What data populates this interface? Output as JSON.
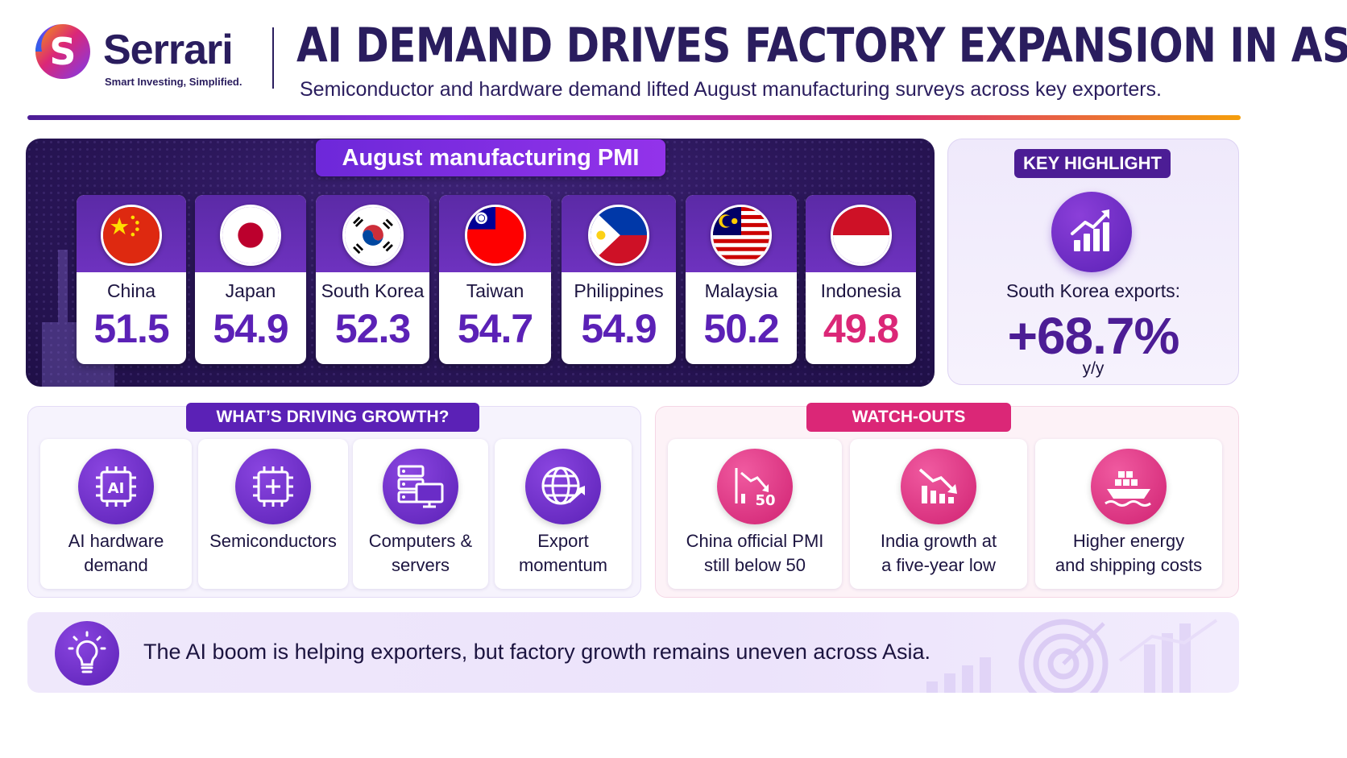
{
  "brand": {
    "name": "Serrari",
    "tagline": "Smart Investing, Simplified."
  },
  "header": {
    "title": "AI DEMAND DRIVES FACTORY EXPANSION IN ASIA",
    "subtitle": "Semiconductor and hardware demand lifted August manufacturing surveys across key exporters."
  },
  "pmi": {
    "title": "August manufacturing PMI",
    "countries": [
      {
        "name": "China",
        "value": "51.5",
        "flag": "china-flag-icon"
      },
      {
        "name": "Japan",
        "value": "54.9",
        "flag": "japan-flag-icon"
      },
      {
        "name": "South Korea",
        "value": "52.3",
        "flag": "south-korea-flag-icon"
      },
      {
        "name": "Taiwan",
        "value": "54.7",
        "flag": "taiwan-flag-icon"
      },
      {
        "name": "Philippines",
        "value": "54.9",
        "flag": "philippines-flag-icon"
      },
      {
        "name": "Malaysia",
        "value": "50.2",
        "flag": "malaysia-flag-icon"
      },
      {
        "name": "Indonesia",
        "value": "49.8",
        "flag": "indonesia-flag-icon"
      }
    ]
  },
  "highlight": {
    "badge": "KEY HIGHLIGHT",
    "label": "South Korea exports:",
    "value": "+68.7%",
    "unit": "y/y",
    "icon": "growth-chart-icon"
  },
  "growth": {
    "badge": "WHAT’S DRIVING GROWTH?",
    "items": [
      {
        "line1": "AI hardware",
        "line2": "demand",
        "icon": "ai-chip-icon"
      },
      {
        "line1": "Semiconductors",
        "line2": "",
        "icon": "chip-icon"
      },
      {
        "line1": "Computers &",
        "line2": "servers",
        "icon": "server-computer-icon"
      },
      {
        "line1": "Export",
        "line2": "momentum",
        "icon": "globe-arrow-icon"
      }
    ]
  },
  "watch": {
    "badge": "WATCH-OUTS",
    "items": [
      {
        "line1": "China official PMI",
        "line2": "still below 50",
        "icon": "declining-chart-50-icon",
        "icon_label": "50"
      },
      {
        "line1": "India growth at",
        "line2": "a five-year low",
        "icon": "declining-bars-icon"
      },
      {
        "line1": "Higher energy",
        "line2": "and shipping costs",
        "icon": "cargo-ship-icon"
      }
    ]
  },
  "footer": {
    "text": "The AI boom is helping exporters, but factory growth remains uneven across Asia.",
    "icon": "lightbulb-icon"
  },
  "colors": {
    "primary": "#4c1d95",
    "accent_purple": "#5b21b6",
    "accent_pink": "#db2777",
    "panel_dark": "#2a1658"
  }
}
